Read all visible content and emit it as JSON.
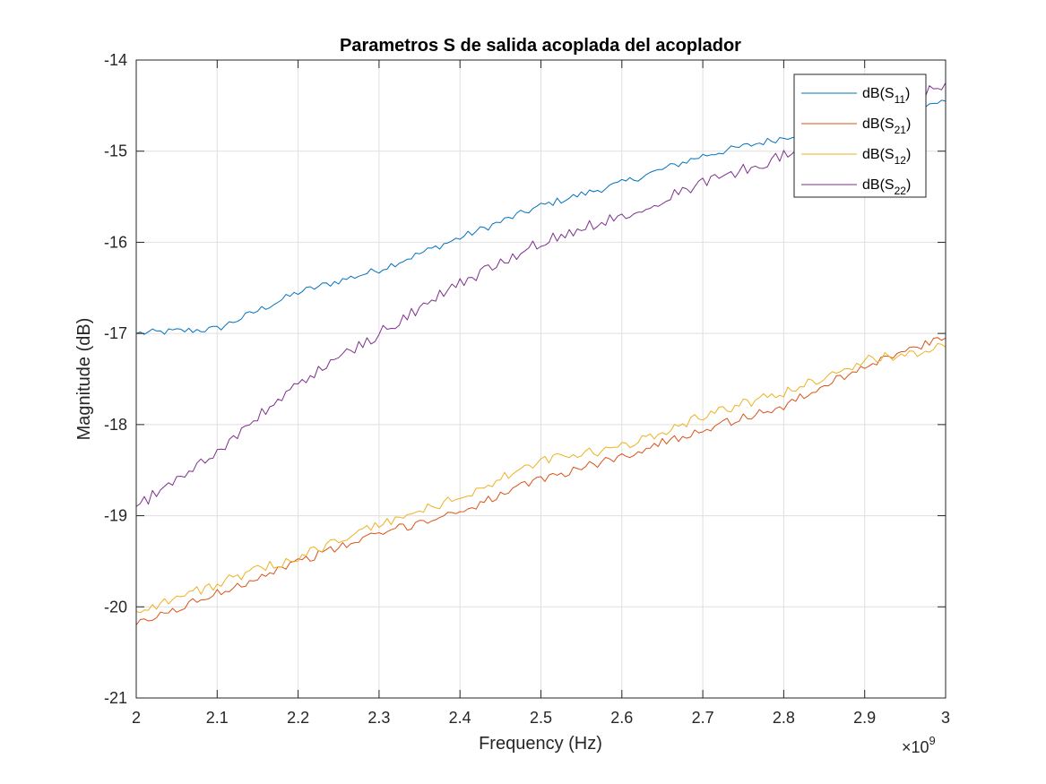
{
  "chart_data": {
    "type": "line",
    "title": "Parametros S de salida acoplada del acoplador",
    "xlabel": "Frequency (Hz)",
    "ylabel": "Magnitude (dB)",
    "x_exponent_label": "×10",
    "x_exponent": "9",
    "xlim": [
      2,
      3
    ],
    "ylim": [
      -21,
      -14
    ],
    "xticks": [
      2,
      2.1,
      2.2,
      2.3,
      2.4,
      2.5,
      2.6,
      2.7,
      2.8,
      2.9,
      3
    ],
    "xtick_labels": [
      "2",
      "2.1",
      "2.2",
      "2.3",
      "2.4",
      "2.5",
      "2.6",
      "2.7",
      "2.8",
      "2.9",
      "3"
    ],
    "yticks": [
      -21,
      -20,
      -19,
      -18,
      -17,
      -16,
      -15,
      -14
    ],
    "ytick_labels": [
      "-21",
      "-20",
      "-19",
      "-18",
      "-17",
      "-16",
      "-15",
      "-14"
    ],
    "grid": true,
    "legend_position": "top-right",
    "x": [
      2.0,
      2.1,
      2.2,
      2.3,
      2.4,
      2.5,
      2.6,
      2.7,
      2.8,
      2.9,
      3.0
    ],
    "series": [
      {
        "name": "dB(S11)",
        "legend_base": "dB(S",
        "legend_sub": "11",
        "legend_end": ")",
        "color": "#0072BD",
        "values": [
          -17.0,
          -16.95,
          -16.55,
          -16.3,
          -15.95,
          -15.6,
          -15.35,
          -15.05,
          -14.85,
          -14.6,
          -14.45
        ]
      },
      {
        "name": "dB(S21)",
        "legend_base": "dB(S",
        "legend_sub": "21",
        "legend_end": ")",
        "color": "#D95319",
        "values": [
          -20.2,
          -19.85,
          -19.5,
          -19.2,
          -18.95,
          -18.6,
          -18.35,
          -18.05,
          -17.8,
          -17.35,
          -17.05
        ]
      },
      {
        "name": "dB(S12)",
        "legend_base": "dB(S",
        "legend_sub": "12",
        "legend_end": ")",
        "color": "#EDB120",
        "values": [
          -20.05,
          -19.75,
          -19.45,
          -19.1,
          -18.8,
          -18.4,
          -18.25,
          -17.9,
          -17.65,
          -17.3,
          -17.15
        ]
      },
      {
        "name": "dB(S22)",
        "legend_base": "dB(S",
        "legend_sub": "22",
        "legend_end": ")",
        "color": "#7E2F8E",
        "values": [
          -18.9,
          -18.3,
          -17.55,
          -17.0,
          -16.45,
          -16.0,
          -15.7,
          -15.35,
          -15.05,
          -14.65,
          -14.25
        ]
      }
    ]
  }
}
